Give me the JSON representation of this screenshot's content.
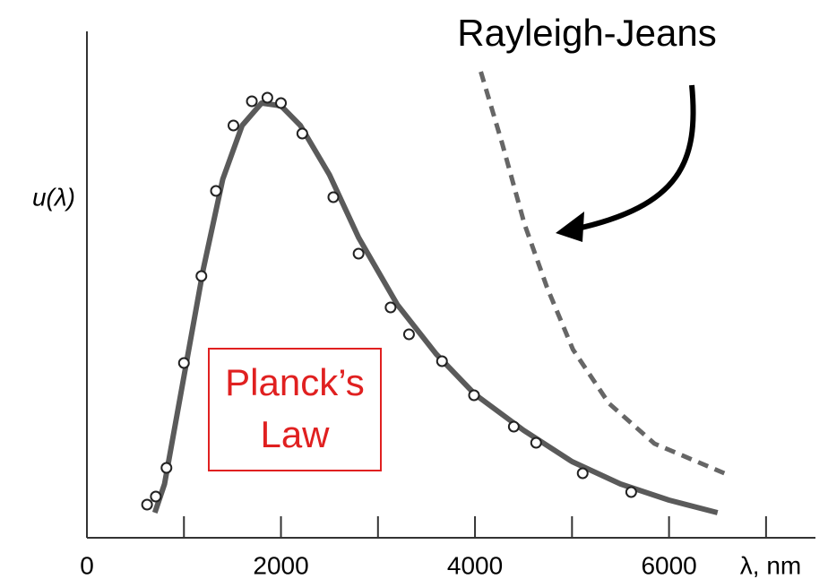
{
  "chart_data": {
    "type": "line",
    "y_label": "u(λ)",
    "x_label": "λ, nm",
    "xlim": [
      0,
      7500
    ],
    "xticks": [
      0,
      2000,
      4000,
      6000
    ],
    "xminor_ticks": [
      1000,
      3000,
      5000,
      7000
    ],
    "ylim": [
      0,
      113
    ],
    "series": [
      {
        "name": "Planck’s Law",
        "color": "#5a5a5a",
        "style": "solid",
        "x": [
          700,
          800,
          1000,
          1200,
          1400,
          1600,
          1800,
          2000,
          2200,
          2500,
          2800,
          3200,
          3600,
          4000,
          4500,
          5000,
          5500,
          6000,
          6500
        ],
        "values": [
          5.6,
          12,
          36,
          60,
          80,
          92,
          97,
          96.4,
          92,
          81,
          67,
          52,
          41,
          32,
          24,
          17,
          12,
          8.4,
          5.6
        ]
      },
      {
        "color": "#222222",
        "style": "markers",
        "x": [
          620,
          710,
          820,
          1000,
          1180,
          1330,
          1510,
          1700,
          1860,
          2000,
          2220,
          2540,
          2800,
          3130,
          3320,
          3660,
          3990,
          4400,
          4630,
          5110,
          5610
        ],
        "values": [
          7.4,
          9.2,
          15.6,
          39,
          58.4,
          77.4,
          92,
          97.4,
          98.2,
          97,
          90.2,
          76,
          63.4,
          51.4,
          45.4,
          39.4,
          31.8,
          24.8,
          21.2,
          14.4,
          10.2
        ]
      },
      {
        "name": "Rayleigh-Jeans",
        "color": "#666666",
        "style": "dashed",
        "x": [
          4060,
          4280,
          4510,
          4740,
          5010,
          5380,
          5850,
          6570
        ],
        "values": [
          104,
          88,
          70,
          56,
          42,
          30,
          21,
          14.4
        ]
      }
    ]
  }
}
